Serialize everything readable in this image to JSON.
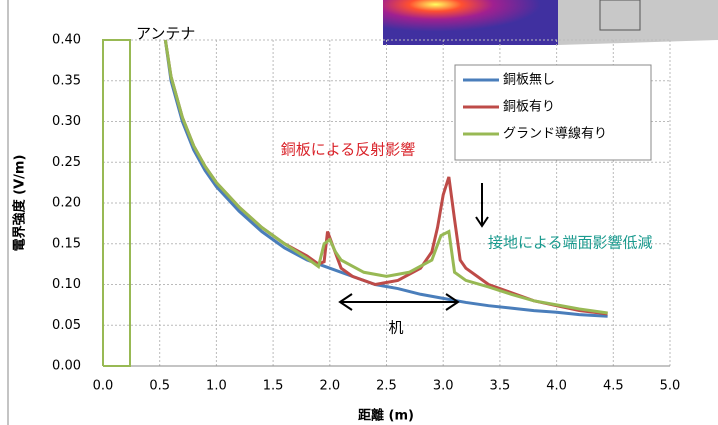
{
  "chart_data": {
    "type": "line",
    "xlabel": "距離 (m)",
    "ylabel": "電界強度 (V/m)",
    "xlim": [
      0,
      5
    ],
    "ylim": [
      0,
      0.4
    ],
    "xticks": [
      {
        "value": 0,
        "label": "0.0"
      },
      {
        "value": 0.5,
        "label": "0.5"
      },
      {
        "value": 1,
        "label": "1.0"
      },
      {
        "value": 1.5,
        "label": "1.5"
      },
      {
        "value": 2,
        "label": "2.0"
      },
      {
        "value": 2.5,
        "label": "2.5"
      },
      {
        "value": 3,
        "label": "3.0"
      },
      {
        "value": 3.5,
        "label": "3.5"
      },
      {
        "value": 4,
        "label": "4.0"
      },
      {
        "value": 4.5,
        "label": "4.5"
      },
      {
        "value": 5,
        "label": "5.0"
      }
    ],
    "yticks": [
      {
        "value": 0,
        "label": "0.00"
      },
      {
        "value": 0.05,
        "label": "0.05"
      },
      {
        "value": 0.1,
        "label": "0.10"
      },
      {
        "value": 0.15,
        "label": "0.15"
      },
      {
        "value": 0.2,
        "label": "0.20"
      },
      {
        "value": 0.25,
        "label": "0.25"
      },
      {
        "value": 0.3,
        "label": "0.30"
      },
      {
        "value": 0.35,
        "label": "0.35"
      },
      {
        "value": 0.4,
        "label": "0.40"
      }
    ],
    "grid": true,
    "legend": "upper right",
    "series": [
      {
        "name": "銅板無し",
        "color": "#4a7ebb",
        "x": [
          0.55,
          0.6,
          0.7,
          0.8,
          0.9,
          1.0,
          1.2,
          1.4,
          1.6,
          1.8,
          2.0,
          2.2,
          2.4,
          2.6,
          2.8,
          3.0,
          3.2,
          3.4,
          3.6,
          3.8,
          4.0,
          4.2,
          4.45
        ],
        "values": [
          0.4,
          0.35,
          0.3,
          0.265,
          0.24,
          0.22,
          0.19,
          0.165,
          0.145,
          0.13,
          0.12,
          0.11,
          0.1,
          0.095,
          0.088,
          0.083,
          0.078,
          0.074,
          0.071,
          0.068,
          0.066,
          0.063,
          0.061
        ]
      },
      {
        "name": "銅板有り",
        "color": "#be4b48",
        "x": [
          0.55,
          0.6,
          0.7,
          0.8,
          0.9,
          1.0,
          1.2,
          1.4,
          1.6,
          1.8,
          1.9,
          1.95,
          1.98,
          2.02,
          2.1,
          2.2,
          2.4,
          2.6,
          2.8,
          2.9,
          2.95,
          3.0,
          3.05,
          3.1,
          3.15,
          3.2,
          3.4,
          3.6,
          3.8,
          4.0,
          4.2,
          4.45
        ],
        "values": [
          0.4,
          0.355,
          0.305,
          0.27,
          0.245,
          0.225,
          0.195,
          0.17,
          0.15,
          0.135,
          0.125,
          0.128,
          0.165,
          0.15,
          0.12,
          0.11,
          0.1,
          0.105,
          0.12,
          0.14,
          0.17,
          0.21,
          0.232,
          0.18,
          0.13,
          0.12,
          0.1,
          0.09,
          0.08,
          0.074,
          0.068,
          0.064
        ]
      },
      {
        "name": "グランド導線有り",
        "color": "#98b954",
        "x": [
          0.55,
          0.6,
          0.7,
          0.8,
          0.9,
          1.0,
          1.2,
          1.4,
          1.6,
          1.8,
          1.9,
          1.95,
          2.0,
          2.05,
          2.1,
          2.3,
          2.5,
          2.7,
          2.9,
          2.98,
          3.05,
          3.1,
          3.2,
          3.4,
          3.6,
          3.8,
          4.0,
          4.2,
          4.45
        ],
        "values": [
          0.4,
          0.355,
          0.305,
          0.27,
          0.245,
          0.225,
          0.195,
          0.17,
          0.15,
          0.132,
          0.122,
          0.15,
          0.155,
          0.14,
          0.13,
          0.115,
          0.11,
          0.115,
          0.13,
          0.16,
          0.165,
          0.115,
          0.105,
          0.097,
          0.088,
          0.08,
          0.075,
          0.07,
          0.065
        ]
      }
    ],
    "annotations": [
      {
        "text": "アンテナ",
        "color": "#000000"
      },
      {
        "text": "銅板による反射影響",
        "color": "#d9232a"
      },
      {
        "text": "接地による端面影響低減",
        "color": "#1a9a8e"
      },
      {
        "text": "机",
        "color": "#000000"
      }
    ]
  }
}
